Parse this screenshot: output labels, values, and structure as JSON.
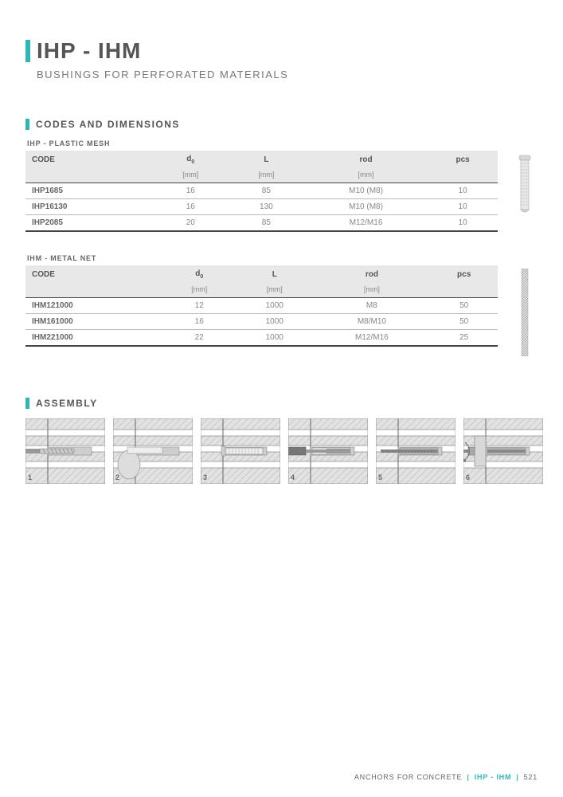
{
  "header": {
    "title": "IHP - IHM",
    "subtitle": "BUSHINGS FOR PERFORATED MATERIALS"
  },
  "codes_section": {
    "title": "CODES AND DIMENSIONS",
    "tables": [
      {
        "subtitle": "IHP - PLASTIC MESH",
        "columns": [
          "CODE",
          "d0",
          "L",
          "rod",
          "pcs"
        ],
        "units": [
          "",
          "[mm]",
          "[mm]",
          "[mm]",
          ""
        ],
        "col_align": [
          "left",
          "center",
          "center",
          "center",
          "center"
        ],
        "rows": [
          [
            "IHP1685",
            "16",
            "85",
            "M10 (M8)",
            "10"
          ],
          [
            "IHP16130",
            "16",
            "130",
            "M10 (M8)",
            "10"
          ],
          [
            "IHP2085",
            "20",
            "85",
            "M12/M16",
            "10"
          ]
        ],
        "image": "plastic-bushing"
      },
      {
        "subtitle": "IHM - METAL NET",
        "columns": [
          "CODE",
          "d0",
          "L",
          "rod",
          "pcs"
        ],
        "units": [
          "",
          "[mm]",
          "[mm]",
          "[mm]",
          ""
        ],
        "col_align": [
          "left",
          "center",
          "center",
          "center",
          "center"
        ],
        "rows": [
          [
            "IHM121000",
            "12",
            "1000",
            "M8",
            "50"
          ],
          [
            "IHM161000",
            "16",
            "1000",
            "M8/M10",
            "50"
          ],
          [
            "IHM221000",
            "22",
            "1000",
            "M12/M16",
            "25"
          ]
        ],
        "image": "metal-net"
      }
    ]
  },
  "assembly_section": {
    "title": "ASSEMBLY",
    "steps": [
      1,
      2,
      3,
      4,
      5,
      6
    ]
  },
  "footer": {
    "category": "ANCHORS FOR CONCRETE",
    "product": "IHP - IHM",
    "page": "521"
  },
  "colors": {
    "accent": "#2db8b8",
    "header_bg": "#e8e8e8",
    "text_main": "#555",
    "text_muted": "#888",
    "border_dark": "#444",
    "border_light": "#bbb",
    "hatch": "#b8b8b8",
    "wall_fill": "#e2e2e2",
    "hole_fill": "#cfcfcf"
  }
}
